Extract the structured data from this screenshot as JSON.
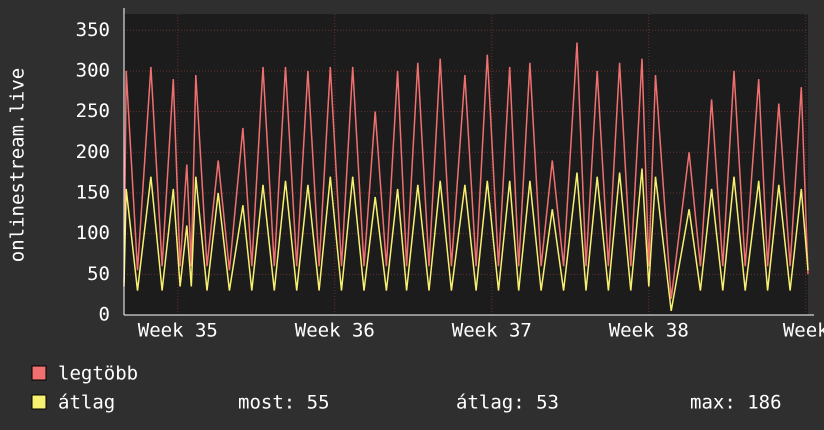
{
  "chart_data": {
    "type": "line",
    "y_label": "onlinestream.live",
    "x": [
      0,
      0.1,
      0.6,
      1.2,
      1.7,
      2.2,
      2.5,
      2.8,
      3.0,
      3.2,
      3.7,
      4.2,
      4.7,
      5.3,
      5.7,
      6.2,
      6.7,
      7.2,
      7.7,
      8.2,
      8.7,
      9.2,
      9.7,
      10.2,
      10.7,
      11.2,
      11.7,
      12.2,
      12.6,
      13.1,
      13.6,
      14.1,
      14.6,
      15.2,
      15.7,
      16.2,
      16.7,
      17.2,
      17.6,
      18.1,
      18.6,
      19.1,
      19.6,
      20.2,
      20.6,
      21.1,
      21.6,
      22.1,
      22.6,
      23.1,
      23.4,
      23.7,
      24.4,
      25.2,
      25.7,
      26.2,
      26.7,
      27.2,
      27.7,
      28.3,
      28.7,
      29.2,
      29.7,
      30.2,
      30.5
    ],
    "series": [
      {
        "name": "legtöbb",
        "color": "#f07070",
        "values": [
          40,
          300,
          55,
          305,
          60,
          290,
          60,
          185,
          60,
          295,
          60,
          190,
          55,
          230,
          60,
          305,
          60,
          305,
          60,
          300,
          60,
          305,
          60,
          305,
          60,
          250,
          60,
          300,
          60,
          310,
          60,
          315,
          60,
          295,
          60,
          320,
          60,
          305,
          60,
          310,
          60,
          190,
          60,
          335,
          60,
          300,
          60,
          310,
          60,
          315,
          60,
          295,
          20,
          200,
          60,
          265,
          60,
          300,
          60,
          290,
          60,
          260,
          60,
          280,
          50
        ]
      },
      {
        "name": "átlag",
        "color": "#f8f070",
        "values": [
          35,
          155,
          30,
          170,
          30,
          155,
          35,
          110,
          35,
          170,
          30,
          150,
          30,
          135,
          30,
          160,
          30,
          165,
          30,
          160,
          30,
          170,
          30,
          170,
          30,
          145,
          30,
          155,
          30,
          160,
          30,
          165,
          30,
          160,
          30,
          165,
          30,
          165,
          30,
          165,
          30,
          130,
          30,
          175,
          30,
          170,
          30,
          175,
          30,
          180,
          35,
          170,
          5,
          130,
          30,
          155,
          30,
          170,
          30,
          165,
          30,
          160,
          30,
          155,
          55
        ]
      }
    ],
    "stats": [
      "most: 55",
      "átlag: 53",
      "max: 186"
    ],
    "xlim": [
      0,
      30.5
    ],
    "xticks": [
      {
        "value": 2.4,
        "label": "Week 35"
      },
      {
        "value": 9.4,
        "label": "Week 36"
      },
      {
        "value": 16.4,
        "label": "Week 37"
      },
      {
        "value": 23.4,
        "label": "Week 38"
      },
      {
        "value": 30.4,
        "label": "Week"
      }
    ],
    "ylim": [
      0,
      370
    ],
    "yticks": [
      0,
      50,
      100,
      150,
      200,
      250,
      300,
      350
    ],
    "grid": true
  }
}
